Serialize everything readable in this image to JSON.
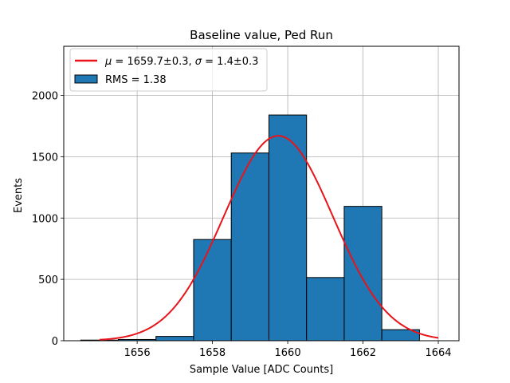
{
  "chart_data": {
    "type": "bar",
    "title": "Baseline value, Ped Run",
    "xlabel": "Sample Value [ADC Counts]",
    "ylabel": "Events",
    "xlim": [
      1654.05,
      1664.55
    ],
    "ylim": [
      0,
      2400
    ],
    "grid": true,
    "x_ticks": [
      1656,
      1658,
      1660,
      1662,
      1664
    ],
    "y_ticks": [
      0,
      500,
      1000,
      1500,
      2000
    ],
    "histogram": {
      "name": "RMS = 1.38",
      "color": "#1f77b4",
      "edgecolor": "#000000",
      "bins": [
        {
          "left": 1654.5,
          "right": 1655.5,
          "value": 5
        },
        {
          "left": 1655.5,
          "right": 1656.5,
          "value": 10
        },
        {
          "left": 1656.5,
          "right": 1657.5,
          "value": 35
        },
        {
          "left": 1657.5,
          "right": 1658.5,
          "value": 825
        },
        {
          "left": 1658.5,
          "right": 1659.5,
          "value": 1530
        },
        {
          "left": 1659.5,
          "right": 1660.5,
          "value": 1840
        },
        {
          "left": 1660.5,
          "right": 1661.5,
          "value": 515
        },
        {
          "left": 1661.5,
          "right": 1662.5,
          "value": 1095
        },
        {
          "left": 1662.5,
          "right": 1663.5,
          "value": 90
        }
      ]
    },
    "fit": {
      "type": "gaussian",
      "name": "μ = 1659.7±0.3, σ = 1.4±0.3",
      "label_parts": {
        "mu_symbol": "μ",
        "mu_text": " = 1659.7±0.3, ",
        "sigma_symbol": "σ",
        "sigma_text": " = 1.4±0.3"
      },
      "color": "#e8141a",
      "amplitude": 1670,
      "mean": 1659.75,
      "sigma": 1.45,
      "x_range": [
        1655.0,
        1664.0
      ]
    },
    "legend_position": "upper-left"
  }
}
